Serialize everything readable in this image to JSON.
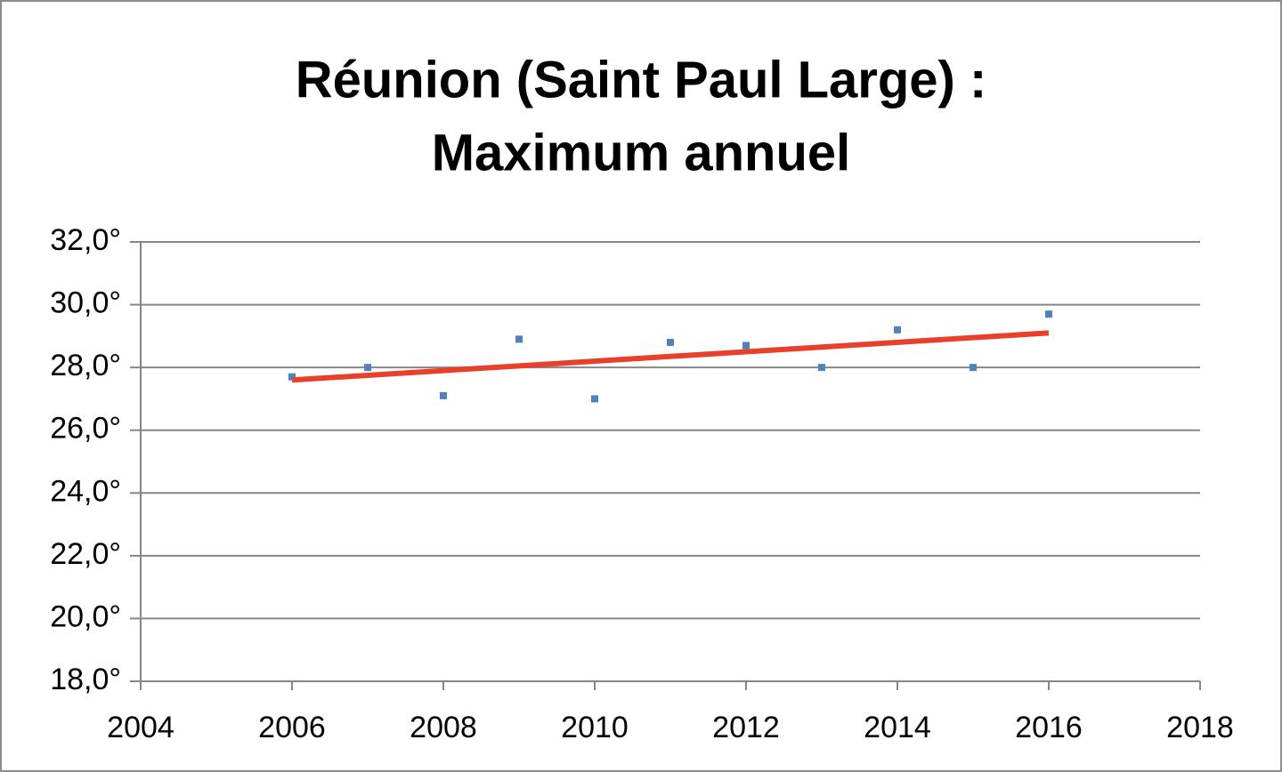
{
  "chart_data": {
    "type": "scatter",
    "title": [
      "Réunion (Saint Paul Large) :",
      "Maximum annuel"
    ],
    "x": [
      2006,
      2007,
      2008,
      2009,
      2010,
      2011,
      2012,
      2013,
      2014,
      2015,
      2016
    ],
    "values": [
      27.7,
      28.0,
      27.1,
      28.9,
      27.0,
      28.8,
      28.7,
      28.0,
      29.2,
      28.0,
      29.7
    ],
    "color": "#4f81bd",
    "trendline": {
      "x": [
        2006,
        2016
      ],
      "values": [
        27.6,
        29.1
      ],
      "color": "#e8402a"
    },
    "xlim": [
      2004,
      2018
    ],
    "xticks": [
      2004,
      2006,
      2008,
      2010,
      2012,
      2014,
      2016,
      2018
    ],
    "ylim": [
      18,
      32
    ],
    "yticks": [
      {
        "value": 18,
        "label": "18,0°"
      },
      {
        "value": 20,
        "label": "20,0°"
      },
      {
        "value": 22,
        "label": "22,0°"
      },
      {
        "value": 24,
        "label": "24,0°"
      },
      {
        "value": 26,
        "label": "26,0°"
      },
      {
        "value": 28,
        "label": "28,0°"
      },
      {
        "value": 30,
        "label": "30,0°"
      },
      {
        "value": 32,
        "label": "32,0°"
      }
    ],
    "grid": true
  }
}
